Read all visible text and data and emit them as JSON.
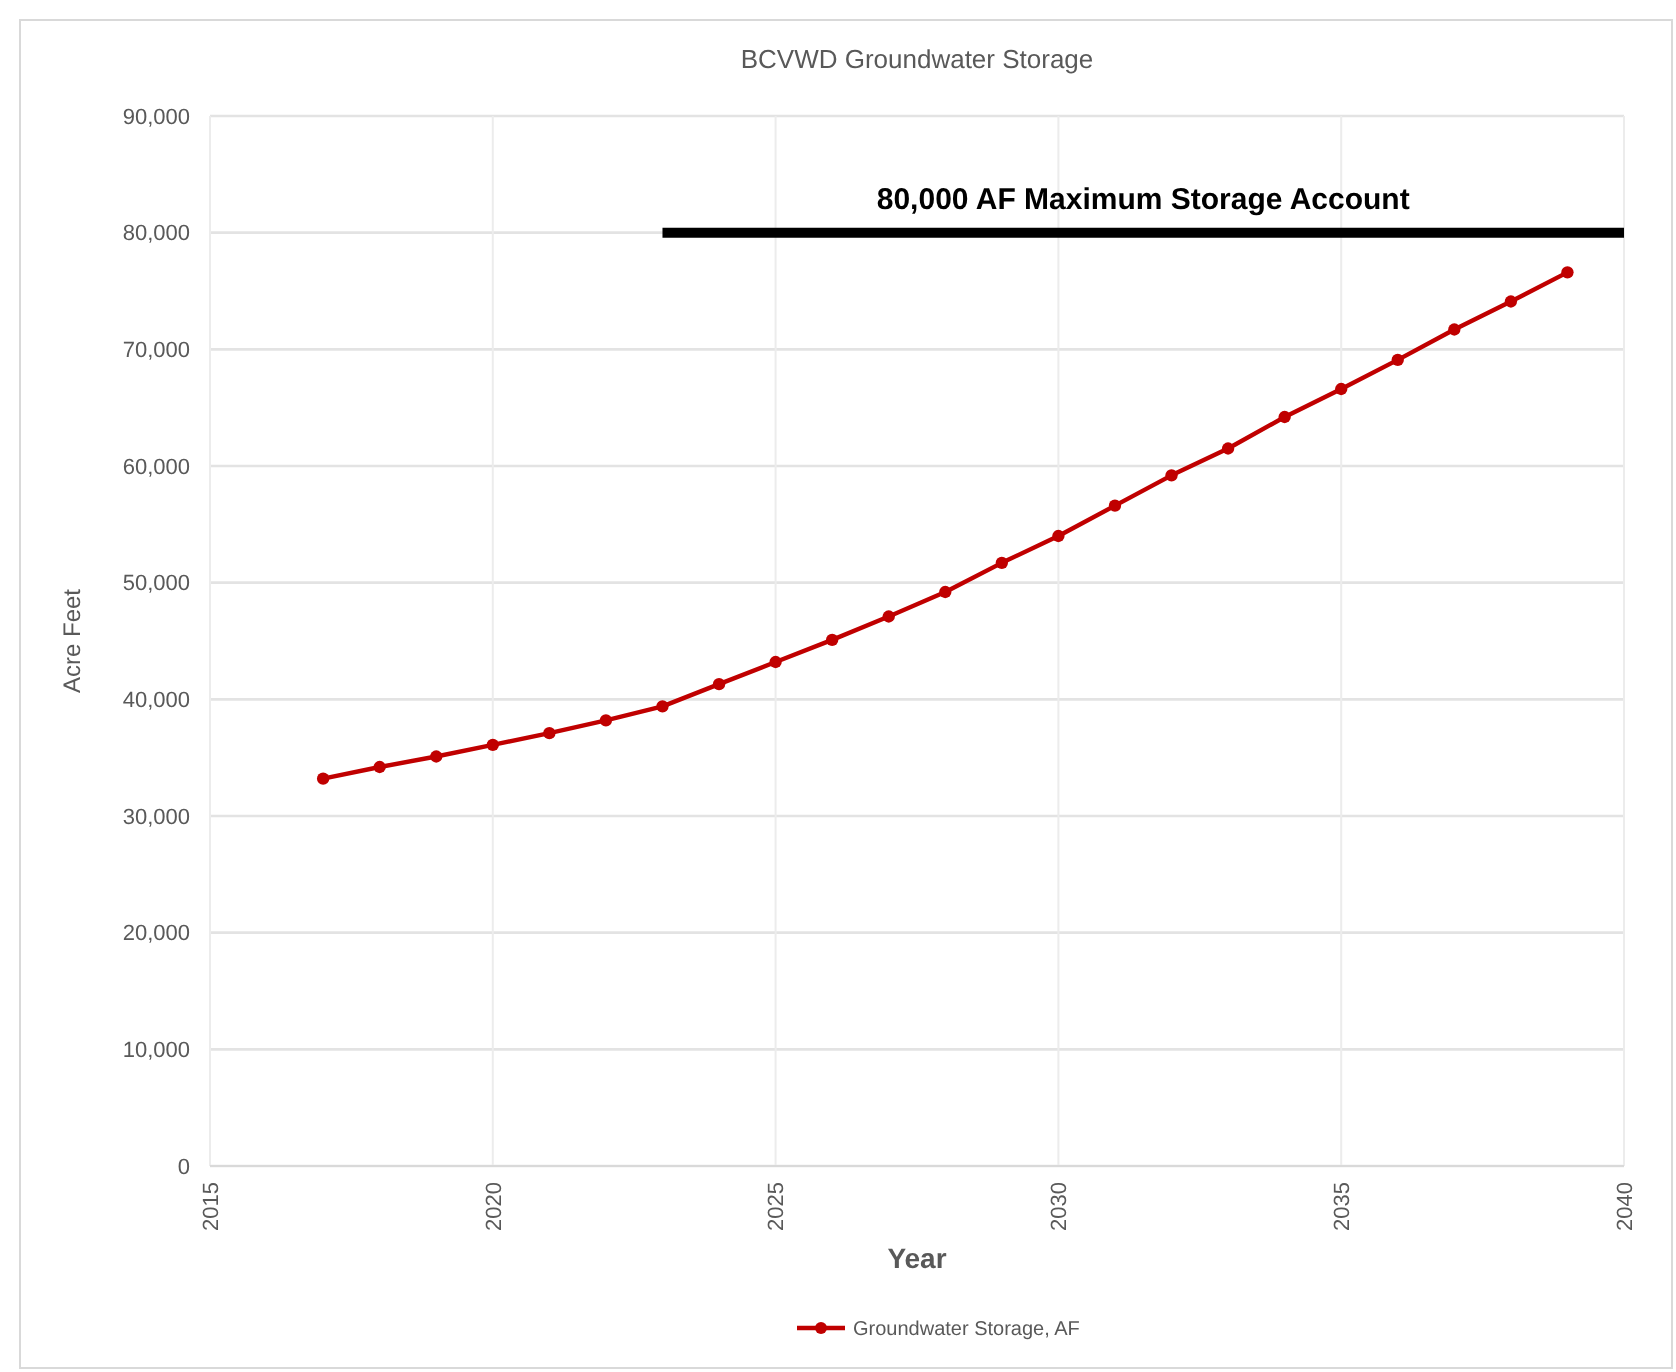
{
  "chart_data": {
    "type": "line",
    "title": "BCVWD Groundwater Storage",
    "xlabel": "Year",
    "ylabel": "Acre Feet",
    "xlim": [
      2015,
      2040
    ],
    "xticks": [
      2015,
      2020,
      2025,
      2030,
      2035,
      2040
    ],
    "ylim": [
      0,
      90000
    ],
    "yticks": [
      0,
      {
        "value": 10000,
        "label": "10,000"
      },
      {
        "value": 20000,
        "label": "20,000"
      },
      {
        "value": 30000,
        "label": "30,000"
      },
      {
        "value": 40000,
        "label": "40,000"
      },
      {
        "value": 50000,
        "label": "50,000"
      },
      {
        "value": 60000,
        "label": "60,000"
      },
      {
        "value": 70000,
        "label": "70,000"
      },
      {
        "value": 80000,
        "label": "80,000"
      },
      {
        "value": 90000,
        "label": "90,000"
      }
    ],
    "grid": true,
    "legend": "bottom",
    "marker": "circle",
    "line_style": "solid",
    "series": [
      {
        "name": "Groundwater Storage, AF",
        "color": "#c00000",
        "x": [
          2017,
          2018,
          2019,
          2020,
          2021,
          2022,
          2023,
          2024,
          2025,
          2026,
          2027,
          2028,
          2029,
          2030,
          2031,
          2032,
          2033,
          2034,
          2035,
          2036,
          2037,
          2038,
          2039
        ],
        "values": [
          33200,
          34200,
          35100,
          36100,
          37100,
          38200,
          39400,
          41300,
          43200,
          45100,
          47100,
          49200,
          51700,
          54000,
          56600,
          59200,
          61500,
          64200,
          66600,
          69100,
          71700,
          74100,
          76600
        ]
      },
      {
        "name": "80,000 AF Maximum Storage Account",
        "color": "#000000",
        "type": "line",
        "marker": "none",
        "x": [
          2023,
          2040
        ],
        "values": [
          80000,
          80000
        ]
      }
    ]
  }
}
